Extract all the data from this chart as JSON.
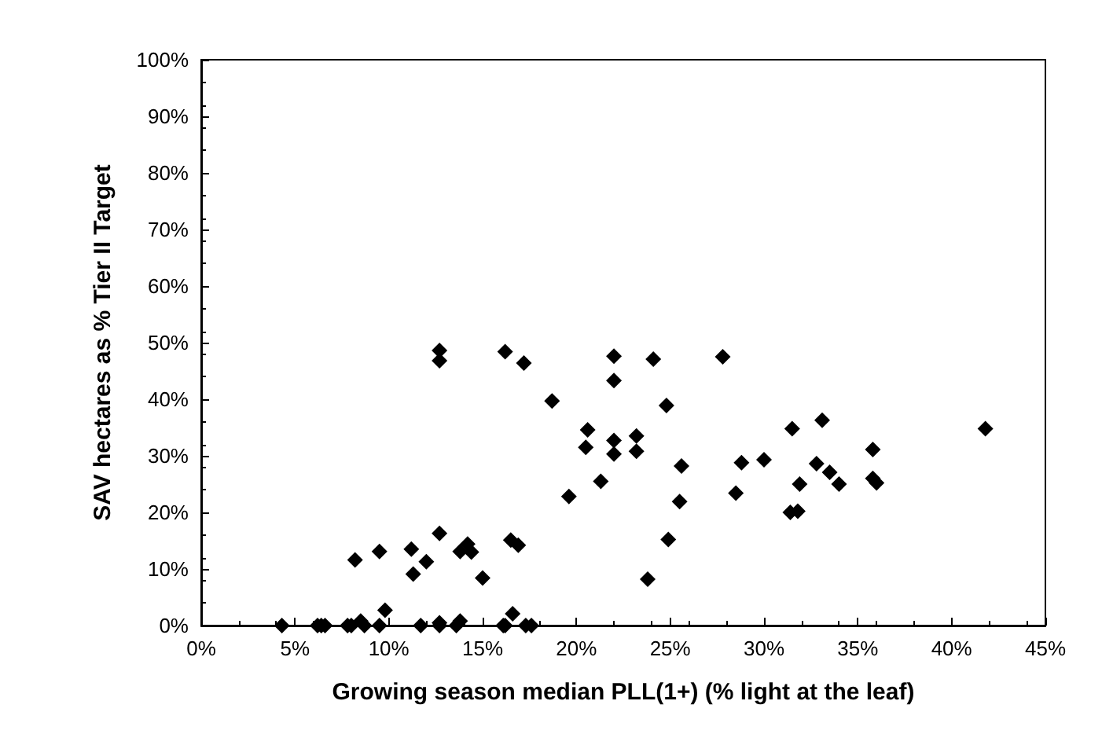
{
  "chart_data": {
    "type": "scatter",
    "xlabel": "Growing season median PLL(1+) (% light at the leaf)",
    "ylabel": "SAV hectares as % Tier II Target",
    "marker": "diamond",
    "grid": false,
    "xlim": [
      0,
      45
    ],
    "ylim": [
      0,
      100
    ],
    "xticks": [
      {
        "value": 0,
        "label": "0%"
      },
      {
        "value": 5,
        "label": "5%"
      },
      {
        "value": 10,
        "label": "10%"
      },
      {
        "value": 15,
        "label": "15%"
      },
      {
        "value": 20,
        "label": "20%"
      },
      {
        "value": 25,
        "label": "25%"
      },
      {
        "value": 30,
        "label": "30%"
      },
      {
        "value": 35,
        "label": "35%"
      },
      {
        "value": 40,
        "label": "40%"
      },
      {
        "value": 45,
        "label": "45%"
      }
    ],
    "yticks": [
      {
        "value": 0,
        "label": "0%"
      },
      {
        "value": 10,
        "label": "10%"
      },
      {
        "value": 20,
        "label": "20%"
      },
      {
        "value": 30,
        "label": "30%"
      },
      {
        "value": 40,
        "label": "40%"
      },
      {
        "value": 50,
        "label": "50%"
      },
      {
        "value": 60,
        "label": "60%"
      },
      {
        "value": 70,
        "label": "70%"
      },
      {
        "value": 80,
        "label": "80%"
      },
      {
        "value": 90,
        "label": "90%"
      },
      {
        "value": 100,
        "label": "100%"
      }
    ],
    "series": [
      {
        "color": "#000000",
        "x": [
          4.3,
          6.2,
          6.4,
          6.6,
          7.8,
          8.0,
          8.5,
          8.7,
          8.2,
          9.5,
          9.5,
          9.8,
          11.2,
          11.3,
          12.0,
          11.7,
          12.7,
          12.7,
          12.7,
          13.6,
          13.8,
          13.8,
          14.2,
          14.4,
          15.0,
          16.1,
          16.2,
          16.6,
          16.5,
          16.9,
          17.3,
          17.6,
          19.6,
          21.3,
          12.7,
          12.7,
          16.2,
          17.2,
          18.7,
          20.6,
          20.5,
          22.0,
          22.0,
          22.0,
          22.0,
          24.1,
          23.2,
          23.2,
          24.8,
          25.6,
          27.8,
          28.8,
          30.0,
          31.5,
          33.1,
          32.8,
          33.5,
          34.0,
          35.8,
          35.8,
          36.0,
          41.8,
          31.9,
          23.8,
          24.9,
          25.5,
          28.5,
          31.4,
          31.8
        ],
        "values": [
          0,
          0,
          0,
          0,
          0,
          0,
          0.8,
          0,
          11.6,
          13.1,
          0,
          2.7,
          13.5,
          9.1,
          11.3,
          0,
          16.3,
          0.5,
          0,
          0,
          0.8,
          13.1,
          14.4,
          13.0,
          8.4,
          0,
          0,
          2.1,
          15.1,
          14.2,
          0,
          0,
          22.8,
          25.5,
          48.6,
          46.8,
          48.4,
          46.4,
          39.7,
          34.6,
          31.5,
          47.6,
          43.3,
          32.7,
          30.3,
          47.1,
          33.5,
          30.8,
          38.9,
          28.2,
          47.5,
          28.8,
          29.3,
          34.8,
          36.3,
          28.6,
          27.1,
          25.0,
          31.1,
          26.0,
          25.2,
          34.8,
          25.0,
          8.2,
          15.2,
          21.9,
          23.4,
          20.0,
          20.2
        ]
      }
    ]
  }
}
